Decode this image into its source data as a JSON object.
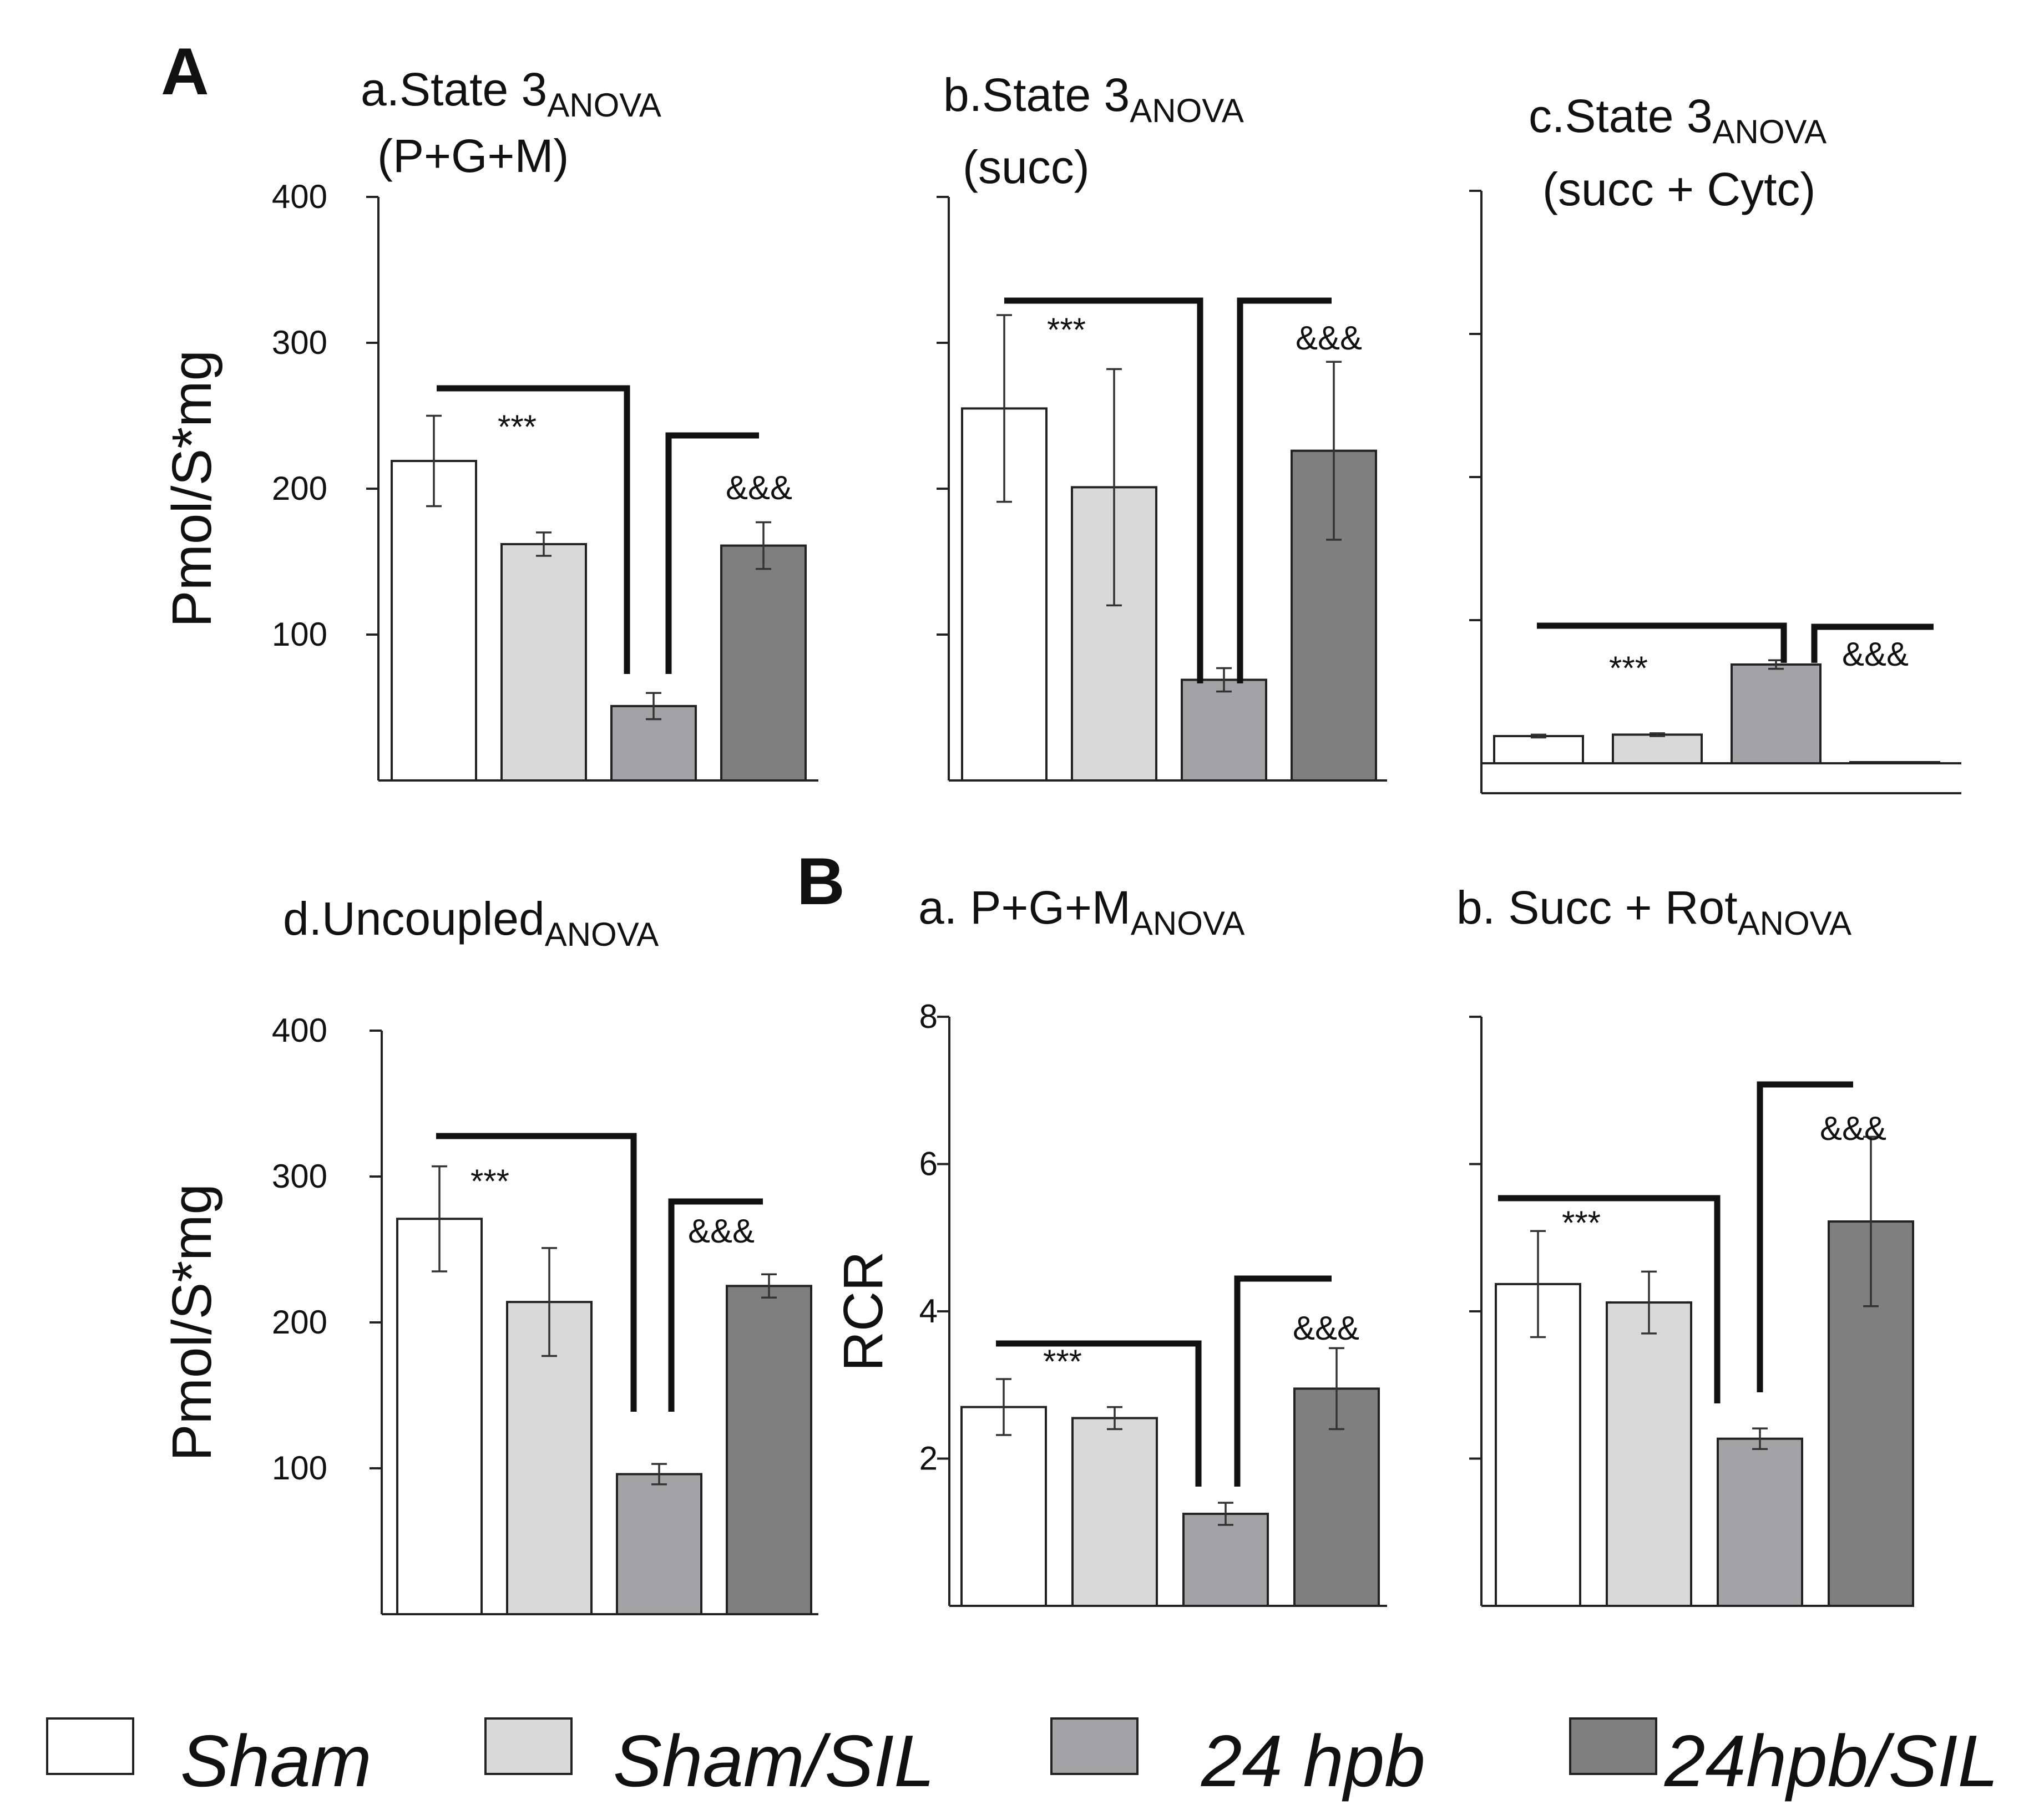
{
  "figure": {
    "panel_labels": {
      "A": "A",
      "B": "B"
    },
    "groups": [
      "Sham",
      "Sham/SIL",
      "24 hpb",
      "24hpb/SIL"
    ],
    "colors": {
      "Sham": "#ffffff",
      "Sham/SIL": "#d9d9d9",
      "24 hpb": "#a3a3a6",
      "24hpb/SIL": "#7f7f7f"
    },
    "legend": [
      {
        "label": "Sham",
        "color": "#ffffff"
      },
      {
        "label": "Sham/SIL",
        "color": "#d9d9d9"
      },
      {
        "label": "24 hpb",
        "color": "#a3a3a6"
      },
      {
        "label": "24hpb/SIL",
        "color": "#7f7f7f"
      }
    ]
  },
  "chart_data": [
    {
      "id": "Aa",
      "type": "bar",
      "title": "a.State 3",
      "title_sub": "ANOVA",
      "title_line2": "(P+G+M)",
      "ylabel": "Pmol/S*mg",
      "ylim": [
        0,
        400
      ],
      "ytick_labels": [
        "100",
        "200",
        "300",
        "400"
      ],
      "categories": [
        "Sham",
        "Sham/SIL",
        "24 hpb",
        "24hpb/SIL"
      ],
      "values": [
        219,
        162,
        51,
        161
      ],
      "errors": [
        31,
        8,
        9,
        16
      ],
      "annotations": [
        {
          "text": "***",
          "bar": 0
        },
        {
          "text": "&&&",
          "bar": 3
        }
      ]
    },
    {
      "id": "Ab",
      "type": "bar",
      "title": "b.State 3",
      "title_sub": "ANOVA",
      "title_line2": "(succ)",
      "ylim": [
        0,
        400
      ],
      "ytick_labels": [],
      "categories": [
        "Sham",
        "Sham/SIL",
        "24 hpb",
        "24hpb/SIL"
      ],
      "values": [
        255,
        201,
        69,
        226
      ],
      "errors": [
        64,
        81,
        8,
        61
      ],
      "annotations": [
        {
          "text": "***",
          "bar": 0
        },
        {
          "text": "&&&",
          "bar": 3
        }
      ]
    },
    {
      "id": "Ac",
      "type": "bar",
      "title": "c.State 3",
      "title_sub": "ANOVA",
      "title_line2": "(succ + Cytc)",
      "ylim": [
        0,
        400
      ],
      "ytick_labels": [],
      "categories": [
        "Sham",
        "Sham/SIL",
        "24 hpb",
        "24hpb/SIL"
      ],
      "values": [
        19,
        20,
        69,
        0
      ],
      "errors": [
        1,
        1,
        3,
        0
      ],
      "annotations": [
        {
          "text": "***",
          "bar": 1
        },
        {
          "text": "&&&",
          "bar": 3
        }
      ]
    },
    {
      "id": "Ad",
      "type": "bar",
      "title": "d.Uncoupled",
      "title_sub": "ANOVA",
      "title_line2": "",
      "ylabel": "Pmol/S*mg",
      "ylim": [
        0,
        400
      ],
      "ytick_labels": [
        "100",
        "200",
        "300",
        "400"
      ],
      "categories": [
        "Sham",
        "Sham/SIL",
        "24 hpb",
        "24hpb/SIL"
      ],
      "values": [
        271,
        214,
        96,
        225
      ],
      "errors": [
        36,
        37,
        7,
        8
      ],
      "annotations": [
        {
          "text": "***",
          "bar": 0
        },
        {
          "text": "&&&",
          "bar": 3
        }
      ]
    },
    {
      "id": "Ba",
      "type": "bar",
      "title": "a. P+G+M",
      "title_sub": "ANOVA",
      "title_line2": "",
      "ylabel": "RCR",
      "ylim": [
        0,
        8
      ],
      "ytick_labels": [
        "2",
        "4",
        "6",
        "8"
      ],
      "categories": [
        "Sham",
        "Sham/SIL",
        "24 hpb",
        "24hpb/SIL"
      ],
      "values": [
        2.7,
        2.55,
        1.25,
        2.95
      ],
      "errors": [
        0.38,
        0.15,
        0.15,
        0.55
      ],
      "annotations": [
        {
          "text": "***",
          "bar": 0
        },
        {
          "text": "&&&",
          "bar": 3
        }
      ]
    },
    {
      "id": "Bb",
      "type": "bar",
      "title": "b. Succ + Rot",
      "title_sub": "ANOVA",
      "title_line2": "",
      "ylim": [
        0,
        8
      ],
      "ytick_labels": [],
      "categories": [
        "Sham",
        "Sham/SIL",
        "24 hpb",
        "24hpb/SIL"
      ],
      "values": [
        4.37,
        4.12,
        2.27,
        5.22
      ],
      "errors": [
        0.72,
        0.42,
        0.14,
        1.15
      ],
      "annotations": [
        {
          "text": "***",
          "bar": 0
        },
        {
          "text": "&&&",
          "bar": 3
        }
      ]
    }
  ]
}
